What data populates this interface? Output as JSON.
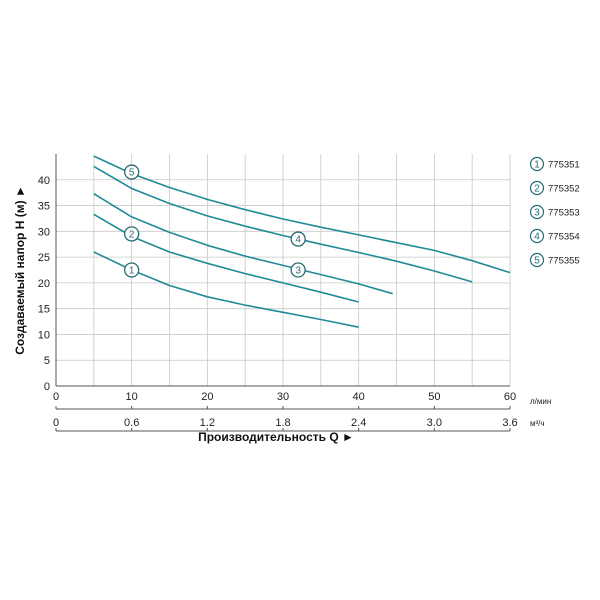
{
  "chart_data": {
    "type": "line",
    "xlabel": "Производительность Q ►",
    "ylabel": "Создаваемый напор H (м) ►",
    "x_unit_primary": "л/мин",
    "x_unit_secondary": "м³/ч",
    "xlim": [
      0,
      60
    ],
    "ylim": [
      0,
      45
    ],
    "x_ticks": [
      0,
      10,
      20,
      30,
      40,
      50,
      60
    ],
    "x_secondary_ticks": [
      "0",
      "0.6",
      "1.2",
      "1.8",
      "2.4",
      "3.0",
      "3.6"
    ],
    "y_ticks": [
      0,
      5,
      10,
      15,
      20,
      25,
      30,
      35,
      40
    ],
    "grid": true,
    "legend_position": "right",
    "colors": {
      "line": "#1f8b96",
      "grid": "#c8c8c8",
      "badge": "#2a6b72"
    },
    "series": [
      {
        "name": "775351",
        "badge": "1",
        "x": [
          5,
          10,
          15,
          20,
          25,
          30,
          35,
          40
        ],
        "y": [
          26.0,
          22.5,
          19.5,
          17.3,
          15.7,
          14.3,
          12.9,
          11.4
        ]
      },
      {
        "name": "775352",
        "badge": "2",
        "x": [
          5,
          10,
          15,
          20,
          25,
          30,
          35,
          40
        ],
        "y": [
          33.3,
          29.0,
          26.0,
          23.8,
          21.8,
          20.0,
          18.2,
          16.3
        ]
      },
      {
        "name": "775353",
        "badge": "3",
        "x": [
          5,
          10,
          15,
          20,
          25,
          30,
          35,
          40,
          44.5
        ],
        "y": [
          37.3,
          32.8,
          29.8,
          27.3,
          25.2,
          23.4,
          21.6,
          19.8,
          17.9
        ]
      },
      {
        "name": "775354",
        "badge": "4",
        "x": [
          5,
          10,
          15,
          20,
          25,
          30,
          35,
          40,
          45,
          50,
          55
        ],
        "y": [
          42.6,
          38.3,
          35.4,
          33.0,
          31.0,
          29.2,
          27.5,
          25.9,
          24.2,
          22.3,
          20.2
        ]
      },
      {
        "name": "775355",
        "badge": "5",
        "x": [
          5,
          10,
          15,
          20,
          25,
          30,
          35,
          40,
          45,
          50,
          55,
          60
        ],
        "y": [
          44.6,
          41.2,
          38.5,
          36.2,
          34.2,
          32.4,
          30.8,
          29.3,
          27.8,
          26.3,
          24.3,
          22.0
        ]
      }
    ],
    "badges": [
      {
        "label": "1",
        "x": 10,
        "y": 22.5
      },
      {
        "label": "2",
        "x": 10,
        "y": 29.5
      },
      {
        "label": "3",
        "x": 32,
        "y": 22.5
      },
      {
        "label": "4",
        "x": 32,
        "y": 28.5
      },
      {
        "label": "5",
        "x": 10,
        "y": 41.5
      }
    ]
  }
}
